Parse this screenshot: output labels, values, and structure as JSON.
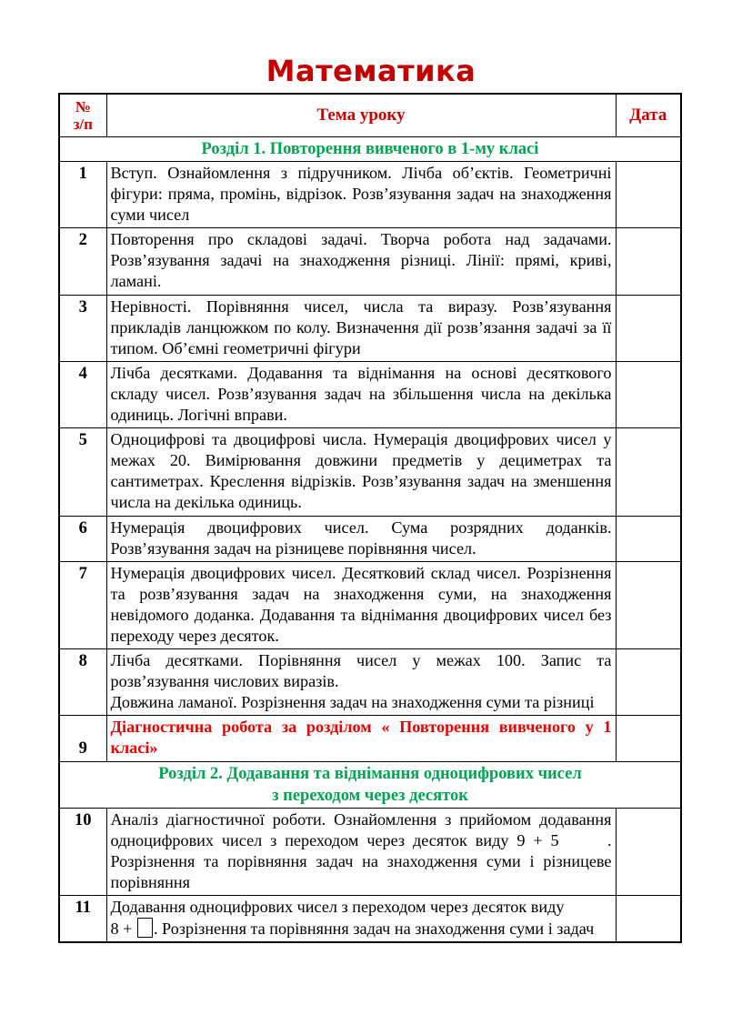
{
  "page": {
    "title": "Математика"
  },
  "colors": {
    "title_red": "#c40000",
    "header_red": "#d10000",
    "section_green": "#00a651",
    "diagnostic_red": "#f20000"
  },
  "table": {
    "header": {
      "num_line1": "№",
      "num_line2": "з/п",
      "topic": "Тема уроку",
      "date": "Дата"
    },
    "sections": {
      "s1": "Розділ 1. Повторення вивченого в 1-му класі",
      "s2_line1": "Розділ 2. Додавання та віднімання одноцифрових чисел",
      "s2_line2": "з переходом через десяток"
    },
    "rows": [
      {
        "num": "1",
        "text": "Вступ. Ознайомлення з підручником. Лічба об’єктів. Геометричні фігури: пряма, промінь, відрізок. Розв’язування задач на знаходження суми чисел"
      },
      {
        "num": "2",
        "text": "Повторення про складові задачі. Творча робота над задачами. Розв’язування задачі на знаходження різниці. Лінії: прямі, криві, ламані."
      },
      {
        "num": "3",
        "text": "Нерівності. Порівняння чисел, числа та виразу. Розв’язування прикладів ланцюжком по колу. Визначення дії розв’язання задачі за її типом. Об’ємні геометричні фігури"
      },
      {
        "num": "4",
        "text": "Лічба десятками. Додавання та віднімання на основі десяткового складу чисел. Розв’язування задач на збільшення числа на декілька одиниць. Логічні вправи."
      },
      {
        "num": "5",
        "text": "Одноцифрові та двоцифрові числа. Нумерація двоцифрових чисел у межах 20. Вимірювання довжини предметів у дециметрах та сантиметрах. Креслення відрізків. Розв’язування задач на зменшення числа на декілька одиниць."
      },
      {
        "num": "6",
        "text": "Нумерація двоцифрових чисел. Сума розрядних доданків. Розв’язування задач на різницеве порівняння чисел."
      },
      {
        "num": "7",
        "text": "Нумерація двоцифрових чисел. Десятковий склад чисел. Розрізнення та розв’язування задач на знаходження суми, на знаходження невідомого доданка. Додавання та віднімання двоцифрових чисел без переходу через десяток."
      },
      {
        "num": "8",
        "text": "Лічба десятками. Порівняння чисел у межах 100. Запис та розв’язування числових виразів.",
        "text2": "Довжина ламаної. Розрізнення задач на знаходження суми та різниці"
      },
      {
        "num": "9",
        "text": "Діагностична робота за розділом « Повторення вивченого у 1 класі»"
      },
      {
        "num": "10",
        "text": "Аналіз діагностичної роботи. Ознайомлення з прийомом додавання одноцифрових чисел з переходом через десяток виду 9 + 5      . Розрізнення та порівняння задач на знаходження суми і різницеве порівняння"
      },
      {
        "num": "11",
        "line1": "Додавання одноцифрових чисел з переходом через десяток виду",
        "line2_before": "8 + ",
        "line2_after": ". Розрізнення та порівняння задач на знаходження суми і задач"
      }
    ]
  }
}
